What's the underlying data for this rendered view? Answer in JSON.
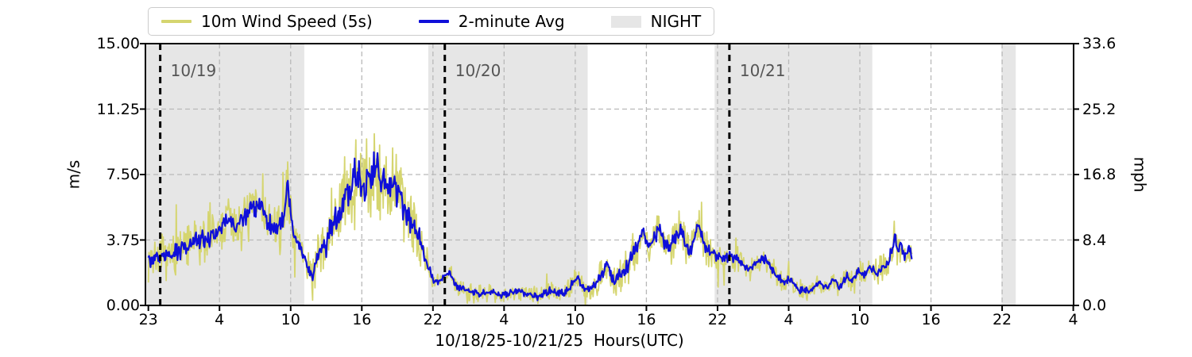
{
  "chart_data": {
    "type": "line",
    "title": "",
    "xlabel": "10/18/25-10/21/25  Hours(UTC)",
    "ylabel_left": "m/s",
    "ylabel_right": "mph",
    "ylim_left": [
      0,
      15
    ],
    "ylim_right": [
      0,
      33.6
    ],
    "ytick_values_left": [
      15.0,
      11.25,
      7.5,
      3.75,
      0.0
    ],
    "ytick_labels_left": [
      "15.00",
      "11.25",
      "7.50",
      "3.75",
      "0.00"
    ],
    "ytick_labels_right": [
      "33.6",
      "25.2",
      "16.8",
      "8.4",
      "0.0"
    ],
    "x_span_hours": 78,
    "xtick_hours": [
      0,
      6,
      12,
      18,
      24,
      30,
      36,
      42,
      48,
      54,
      60,
      66,
      72,
      78
    ],
    "xtick_labels": [
      "23",
      "4",
      "10",
      "16",
      "22",
      "4",
      "10",
      "16",
      "22",
      "4",
      "10",
      "16",
      "22",
      "4"
    ],
    "grid": true,
    "grid_color": "#b9b9b9",
    "night_color": "#e6e6e6",
    "day_line_color": "#000000",
    "day_label_color": "#555555",
    "legend": {
      "position": "top-left",
      "items": [
        {
          "label": "10m Wind Speed (5s)",
          "color": "#d5d56f",
          "type": "line"
        },
        {
          "label": "2-minute Avg",
          "color": "#0f0fd9",
          "type": "line"
        },
        {
          "label": "NIGHT",
          "color": "#e6e6e6",
          "type": "patch"
        }
      ]
    },
    "day_boundaries": [
      {
        "hour": 1.0,
        "label": "10/19"
      },
      {
        "hour": 25.0,
        "label": "10/20"
      },
      {
        "hour": 49.0,
        "label": "10/21"
      }
    ],
    "night_bands_hours": [
      [
        -0.3,
        13.15
      ],
      [
        23.6,
        37.05
      ],
      [
        47.75,
        61.05
      ],
      [
        71.95,
        73.15
      ]
    ],
    "data_start_hour": 0,
    "data_end_hour": 64.4,
    "series": [
      {
        "name": "10m Wind Speed (5s)",
        "color": "#d5d56f",
        "unit": "m/s",
        "style": "noisy-gust-envelope-around-avg",
        "spread_keypoints_h_s": [
          [
            0,
            1.3
          ],
          [
            6,
            1.5
          ],
          [
            9,
            1.6
          ],
          [
            12,
            1.5
          ],
          [
            13.5,
            1.0
          ],
          [
            14.5,
            1.6
          ],
          [
            16,
            2.3
          ],
          [
            17.5,
            3.0
          ],
          [
            19,
            2.5
          ],
          [
            21,
            2.2
          ],
          [
            22.5,
            1.9
          ],
          [
            23.5,
            1.1
          ],
          [
            24.5,
            0.55
          ],
          [
            30,
            0.5
          ],
          [
            36,
            0.6
          ],
          [
            37.5,
            0.8
          ],
          [
            39,
            1.0
          ],
          [
            41,
            1.2
          ],
          [
            44,
            1.2
          ],
          [
            47,
            1.0
          ],
          [
            48.5,
            0.75
          ],
          [
            52,
            0.7
          ],
          [
            56,
            0.55
          ],
          [
            60,
            0.6
          ],
          [
            61.5,
            0.75
          ],
          [
            63,
            0.95
          ],
          [
            64.4,
            0.7
          ]
        ]
      },
      {
        "name": "2-minute Avg",
        "color": "#0f0fd9",
        "unit": "m/s",
        "keypoints_h_v": [
          [
            0,
            2.7
          ],
          [
            1,
            2.75
          ],
          [
            2,
            2.9
          ],
          [
            3,
            3.3
          ],
          [
            4,
            3.6
          ],
          [
            5,
            3.9
          ],
          [
            6,
            4.2
          ],
          [
            6.8,
            5.1
          ],
          [
            7.3,
            4.6
          ],
          [
            8,
            5.0
          ],
          [
            8.7,
            5.5
          ],
          [
            9.3,
            5.8
          ],
          [
            10,
            4.9
          ],
          [
            10.7,
            4.2
          ],
          [
            11.3,
            4.7
          ],
          [
            11.75,
            6.8
          ],
          [
            12.1,
            4.7
          ],
          [
            12.6,
            3.7
          ],
          [
            13.2,
            2.7
          ],
          [
            13.8,
            1.7
          ],
          [
            14.3,
            2.7
          ],
          [
            15,
            3.5
          ],
          [
            15.6,
            4.9
          ],
          [
            16.2,
            5.5
          ],
          [
            16.8,
            6.3
          ],
          [
            17.3,
            7.1
          ],
          [
            17.7,
            7.7
          ],
          [
            18.2,
            7.0
          ],
          [
            18.7,
            7.5
          ],
          [
            19.2,
            7.8
          ],
          [
            19.7,
            7.1
          ],
          [
            20.2,
            6.6
          ],
          [
            20.7,
            6.9
          ],
          [
            21.2,
            6.1
          ],
          [
            21.7,
            5.3
          ],
          [
            22.2,
            4.8
          ],
          [
            22.7,
            4.2
          ],
          [
            23.1,
            3.3
          ],
          [
            23.6,
            2.2
          ],
          [
            24.2,
            1.3
          ],
          [
            24.9,
            1.6
          ],
          [
            25.4,
            1.9
          ],
          [
            26,
            1.1
          ],
          [
            27,
            0.8
          ],
          [
            28,
            0.65
          ],
          [
            29,
            0.8
          ],
          [
            30,
            0.55
          ],
          [
            31,
            0.85
          ],
          [
            32,
            0.65
          ],
          [
            33,
            0.5
          ],
          [
            34,
            0.9
          ],
          [
            35,
            0.65
          ],
          [
            36.2,
            1.6
          ],
          [
            36.8,
            0.85
          ],
          [
            37.4,
            1.0
          ],
          [
            38.1,
            1.6
          ],
          [
            38.7,
            2.4
          ],
          [
            39.3,
            1.3
          ],
          [
            40.4,
            2.3
          ],
          [
            41.1,
            3.3
          ],
          [
            41.7,
            4.2
          ],
          [
            42.3,
            3.4
          ],
          [
            43.1,
            4.4
          ],
          [
            43.8,
            3.2
          ],
          [
            44.9,
            4.4
          ],
          [
            45.6,
            3.0
          ],
          [
            46.4,
            4.6
          ],
          [
            47,
            3.2
          ],
          [
            47.8,
            2.9
          ],
          [
            48.4,
            2.7
          ],
          [
            49,
            2.8
          ],
          [
            49.8,
            2.6
          ],
          [
            50.5,
            2.1
          ],
          [
            51.2,
            2.3
          ],
          [
            51.9,
            2.7
          ],
          [
            52.8,
            1.9
          ],
          [
            53.5,
            1.3
          ],
          [
            54.1,
            1.6
          ],
          [
            54.8,
            0.95
          ],
          [
            55.8,
            0.8
          ],
          [
            56.5,
            1.3
          ],
          [
            57.2,
            1.0
          ],
          [
            57.8,
            1.5
          ],
          [
            58.2,
            1.0
          ],
          [
            58.9,
            1.7
          ],
          [
            59.3,
            1.4
          ],
          [
            59.9,
            2.0
          ],
          [
            60.5,
            1.8
          ],
          [
            60.9,
            2.2
          ],
          [
            61.5,
            1.9
          ],
          [
            61.9,
            2.4
          ],
          [
            62.2,
            2.1
          ],
          [
            62.6,
            3.0
          ],
          [
            63.0,
            3.8
          ],
          [
            63.2,
            3.1
          ],
          [
            63.5,
            3.5
          ],
          [
            63.8,
            2.8
          ],
          [
            64.1,
            3.2
          ],
          [
            64.4,
            2.8
          ]
        ]
      }
    ]
  }
}
